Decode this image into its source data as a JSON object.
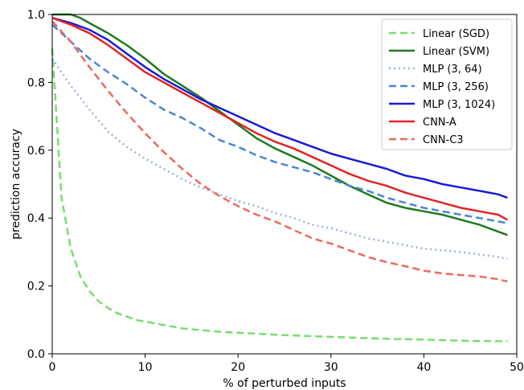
{
  "chart_data": {
    "type": "line",
    "xlabel": "% of perturbed inputs",
    "ylabel": "prediction accuracy",
    "xlim": [
      0,
      50
    ],
    "ylim": [
      0,
      1.0
    ],
    "xticks": [
      0,
      10,
      20,
      30,
      40,
      50
    ],
    "xtick_labels": [
      "0",
      "10",
      "20",
      "30",
      "40",
      "50"
    ],
    "yticks": [
      0,
      0.2,
      0.4,
      0.6,
      0.8,
      1.0
    ],
    "ytick_labels": [
      "0.0",
      "0.2",
      "0.4",
      "0.6",
      "0.8",
      "1.0"
    ],
    "grid": false,
    "legend_position": "top-right",
    "series": [
      {
        "name": "Linear (SGD)",
        "color": "#77dd6f",
        "style": "dashed",
        "x": [
          0,
          1,
          2,
          3,
          4,
          5,
          6,
          7,
          8,
          9,
          10,
          12,
          14,
          16,
          18,
          20,
          25,
          30,
          35,
          40,
          45,
          49
        ],
        "y": [
          0.9,
          0.46,
          0.31,
          0.23,
          0.185,
          0.155,
          0.135,
          0.12,
          0.11,
          0.1,
          0.095,
          0.085,
          0.075,
          0.07,
          0.065,
          0.062,
          0.055,
          0.05,
          0.045,
          0.042,
          0.038,
          0.037
        ]
      },
      {
        "name": "Linear (SVM)",
        "color": "#1f7a1f",
        "style": "solid",
        "x": [
          0,
          2,
          3,
          4,
          6,
          8,
          10,
          12,
          14,
          16,
          18,
          20,
          22,
          24,
          26,
          28,
          30,
          32,
          34,
          36,
          38,
          40,
          42,
          44,
          46,
          48,
          49
        ],
        "y": [
          1.0,
          1.0,
          0.99,
          0.975,
          0.945,
          0.91,
          0.87,
          0.825,
          0.79,
          0.755,
          0.715,
          0.675,
          0.635,
          0.605,
          0.58,
          0.555,
          0.525,
          0.495,
          0.47,
          0.445,
          0.43,
          0.42,
          0.41,
          0.395,
          0.38,
          0.36,
          0.35
        ]
      },
      {
        "name": "MLP (3, 64)",
        "color": "#9ab3d9",
        "style": "dotted",
        "x": [
          0,
          2,
          4,
          6,
          8,
          10,
          12,
          14,
          16,
          18,
          20,
          22,
          24,
          26,
          28,
          30,
          32,
          34,
          36,
          38,
          40,
          42,
          44,
          46,
          48,
          49
        ],
        "y": [
          0.87,
          0.79,
          0.72,
          0.655,
          0.61,
          0.575,
          0.545,
          0.515,
          0.49,
          0.47,
          0.45,
          0.435,
          0.415,
          0.4,
          0.38,
          0.37,
          0.355,
          0.34,
          0.33,
          0.32,
          0.31,
          0.305,
          0.3,
          0.293,
          0.285,
          0.28
        ]
      },
      {
        "name": "MLP (3, 256)",
        "color": "#4a86d6",
        "style": "dashed",
        "x": [
          0,
          2,
          4,
          6,
          8,
          10,
          12,
          14,
          16,
          18,
          20,
          22,
          24,
          26,
          28,
          30,
          32,
          34,
          36,
          38,
          40,
          42,
          44,
          46,
          48,
          49
        ],
        "y": [
          0.97,
          0.92,
          0.87,
          0.83,
          0.795,
          0.755,
          0.72,
          0.695,
          0.665,
          0.63,
          0.61,
          0.585,
          0.565,
          0.55,
          0.535,
          0.515,
          0.495,
          0.48,
          0.46,
          0.445,
          0.43,
          0.42,
          0.41,
          0.4,
          0.39,
          0.385
        ]
      },
      {
        "name": "MLP (3, 1024)",
        "color": "#1a1ad6",
        "style": "solid",
        "x": [
          0,
          2,
          4,
          6,
          8,
          10,
          12,
          14,
          16,
          18,
          20,
          22,
          24,
          26,
          28,
          30,
          32,
          34,
          36,
          38,
          40,
          42,
          44,
          46,
          48,
          49
        ],
        "y": [
          0.99,
          0.975,
          0.955,
          0.925,
          0.885,
          0.845,
          0.81,
          0.78,
          0.75,
          0.725,
          0.7,
          0.675,
          0.65,
          0.63,
          0.61,
          0.59,
          0.575,
          0.56,
          0.545,
          0.525,
          0.515,
          0.5,
          0.49,
          0.48,
          0.47,
          0.46
        ]
      },
      {
        "name": "CNN-A",
        "color": "#e02525",
        "style": "solid",
        "x": [
          0,
          2,
          4,
          6,
          8,
          10,
          12,
          14,
          16,
          18,
          20,
          22,
          24,
          26,
          28,
          30,
          32,
          34,
          36,
          38,
          40,
          42,
          44,
          46,
          48,
          49
        ],
        "y": [
          0.99,
          0.97,
          0.945,
          0.91,
          0.87,
          0.83,
          0.8,
          0.77,
          0.74,
          0.71,
          0.68,
          0.65,
          0.625,
          0.605,
          0.58,
          0.555,
          0.53,
          0.51,
          0.495,
          0.475,
          0.46,
          0.445,
          0.43,
          0.42,
          0.41,
          0.395
        ]
      },
      {
        "name": "CNN-C3",
        "color": "#ec6a5c",
        "style": "dashed",
        "x": [
          0,
          2,
          4,
          6,
          8,
          10,
          12,
          14,
          16,
          18,
          20,
          22,
          24,
          26,
          28,
          30,
          32,
          34,
          36,
          38,
          40,
          42,
          44,
          46,
          48,
          49
        ],
        "y": [
          0.98,
          0.92,
          0.845,
          0.775,
          0.71,
          0.65,
          0.595,
          0.545,
          0.5,
          0.465,
          0.435,
          0.41,
          0.39,
          0.365,
          0.34,
          0.325,
          0.305,
          0.285,
          0.27,
          0.258,
          0.245,
          0.237,
          0.232,
          0.228,
          0.22,
          0.213
        ]
      }
    ]
  }
}
